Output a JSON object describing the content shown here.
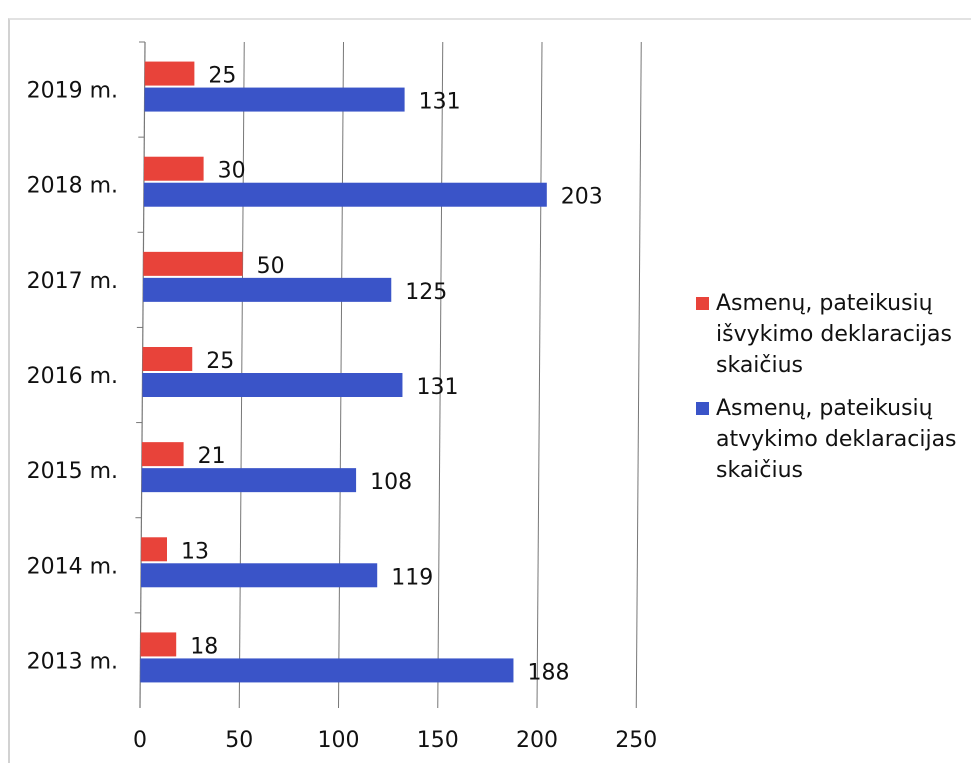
{
  "chart_data": {
    "type": "bar",
    "orientation": "horizontal",
    "categories": [
      "2013 m.",
      "2014 m.",
      "2015 m.",
      "2016 m.",
      "2017 m.",
      "2018 m.",
      "2019 m."
    ],
    "series": [
      {
        "name": "Asmenų, pateikusių išvykimo deklaracijas skaičius",
        "color": "#e8433a",
        "values": [
          18,
          13,
          21,
          25,
          50,
          30,
          25
        ]
      },
      {
        "name": "Asmenų, pateikusių atvykimo deklaracijas skaičius",
        "color": "#3a54c8",
        "values": [
          188,
          119,
          108,
          131,
          125,
          203,
          131
        ]
      }
    ],
    "xlim": [
      0,
      250
    ],
    "xticks": [
      0,
      50,
      100,
      150,
      200,
      250
    ],
    "grid": true,
    "legend_position": "right"
  },
  "legend": {
    "items": [
      {
        "label": "Asmenų, pateikusių\nišvykimo deklaracijas\nskaičius",
        "color": "#e8433a"
      },
      {
        "label": "Asmenų, pateikusių\natvykimo deklaracijas\nskaičius",
        "color": "#3a54c8"
      }
    ]
  }
}
